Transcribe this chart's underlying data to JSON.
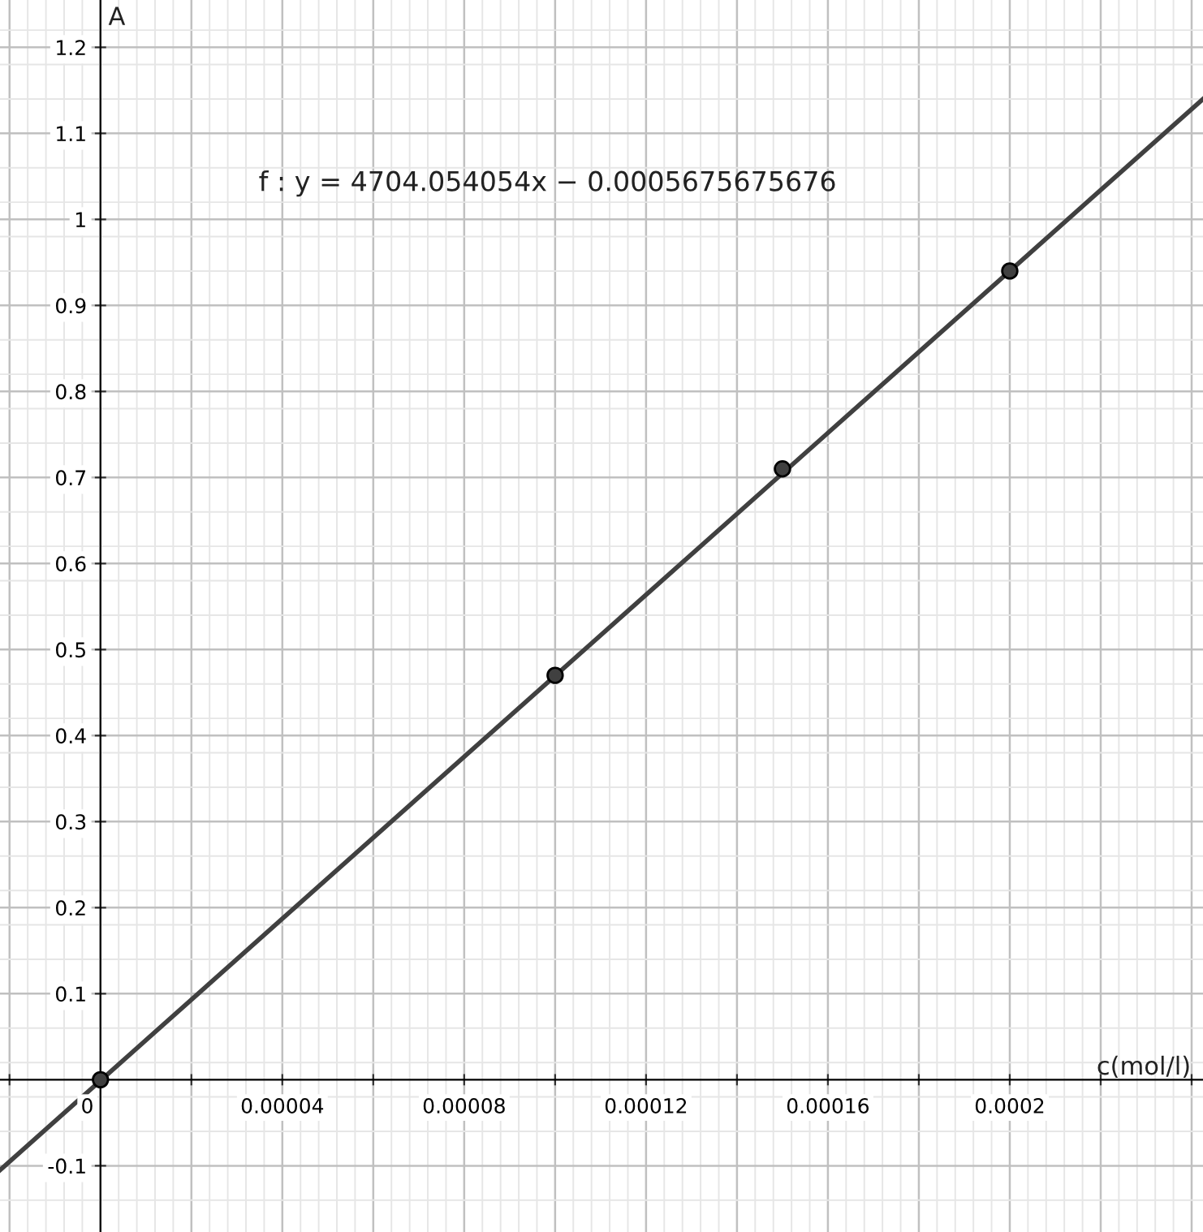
{
  "chart_data": {
    "type": "line",
    "xlabel": "c(mol/l)",
    "ylabel": "A",
    "annotations": [
      "f : y = 4704.054054x − 0.0005675675676"
    ],
    "series": [
      {
        "color": "#404040",
        "x": [
          -2.21e-05,
          0.0002425
        ],
        "values": [
          -0.105,
          1.14
        ],
        "marker": "none"
      },
      {
        "type": "scatter",
        "color": "#404040",
        "x": [
          0,
          0.0001,
          0.00015,
          0.0002
        ],
        "values": [
          0,
          0.47,
          0.71,
          0.94
        ],
        "marker": "circle"
      }
    ],
    "xlim": [
      -2.21e-05,
      0.0002425
    ],
    "ylim": [
      -0.177,
      1.255
    ],
    "xticks": [
      {
        "value": -2e-05,
        "label": null
      },
      {
        "value": 0,
        "label": "0"
      },
      {
        "value": 2e-05,
        "label": null
      },
      {
        "value": 4e-05,
        "label": "0.00004"
      },
      {
        "value": 6e-05,
        "label": null
      },
      {
        "value": 8e-05,
        "label": "0.00008"
      },
      {
        "value": 0.0001,
        "label": null
      },
      {
        "value": 0.00012,
        "label": "0.00012"
      },
      {
        "value": 0.00014,
        "label": null
      },
      {
        "value": 0.00016,
        "label": "0.00016"
      },
      {
        "value": 0.00018,
        "label": null
      },
      {
        "value": 0.0002,
        "label": "0.0002"
      },
      {
        "value": 0.00022,
        "label": null
      },
      {
        "value": 0.00024,
        "label": null
      }
    ],
    "yticks": [
      -0.1,
      0.1,
      0.2,
      0.3,
      0.4,
      0.5,
      0.6,
      0.7,
      0.8,
      0.9,
      1,
      1.1,
      1.2
    ],
    "grid": true
  }
}
